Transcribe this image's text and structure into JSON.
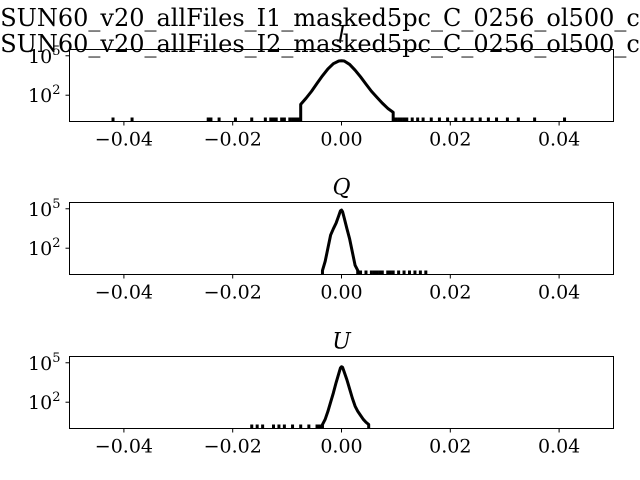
{
  "suptitle_lines": [
    "SUN60_v20_allFiles_I1_masked5pc_C_0256_ol500_c",
    "SUN60_v20_allFiles_I2_masked5pc_C_0256_ol500_c"
  ],
  "chart_data": [
    {
      "type": "line",
      "title": "I",
      "xlim": [
        -0.05,
        0.05
      ],
      "yscale": "log",
      "ylim": [
        1,
        300000
      ],
      "xticks": [
        -0.04,
        -0.02,
        0.0,
        0.02,
        0.04
      ],
      "xtick_labels": [
        "−0.04",
        "−0.02",
        "0.00",
        "0.02",
        "0.04"
      ],
      "yticks": [
        {
          "value": 100,
          "base": "10",
          "exp": "2"
        },
        {
          "value": 100000,
          "base": "10",
          "exp": "5"
        }
      ],
      "grid": false,
      "curve": {
        "x": [
          -0.0075,
          -0.0065,
          -0.0055,
          -0.0045,
          -0.0035,
          -0.0025,
          -0.0015,
          -0.0005,
          0.0,
          0.0005,
          0.0015,
          0.0025,
          0.0035,
          0.0045,
          0.0055,
          0.0065,
          0.0075,
          0.0085,
          0.0095
        ],
        "y": [
          20,
          60,
          200,
          800,
          3000,
          10000,
          25000,
          40000,
          42000,
          40000,
          22000,
          8000,
          2500,
          700,
          200,
          70,
          25,
          10,
          5
        ]
      },
      "outliers_x": [
        -0.042,
        -0.0385,
        -0.0245,
        -0.024,
        -0.0225,
        -0.0195,
        -0.0165,
        -0.014,
        -0.013,
        -0.0125,
        -0.012,
        -0.011,
        -0.0105,
        -0.0095,
        -0.009,
        -0.0085,
        -0.008,
        0.01,
        0.0105,
        0.011,
        0.0115,
        0.012,
        0.013,
        0.014,
        0.015,
        0.0165,
        0.018,
        0.0195,
        0.021,
        0.0225,
        0.024,
        0.0255,
        0.027,
        0.0285,
        0.0305,
        0.0325,
        0.0355,
        0.041
      ]
    },
    {
      "type": "line",
      "title": "Q",
      "xlim": [
        -0.05,
        0.05
      ],
      "yscale": "log",
      "ylim": [
        1,
        300000
      ],
      "xticks": [
        -0.04,
        -0.02,
        0.0,
        0.02,
        0.04
      ],
      "xtick_labels": [
        "−0.04",
        "−0.02",
        "0.00",
        "0.02",
        "0.04"
      ],
      "yticks": [
        {
          "value": 100,
          "base": "10",
          "exp": "2"
        },
        {
          "value": 100000,
          "base": "10",
          "exp": "5"
        }
      ],
      "grid": false,
      "curve": {
        "x": [
          -0.0035,
          -0.003,
          -0.0025,
          -0.002,
          -0.0015,
          -0.001,
          -0.0005,
          -0.0002,
          0.0,
          0.0002,
          0.0005,
          0.001,
          0.0015,
          0.002,
          0.0025,
          0.003
        ],
        "y": [
          2,
          10,
          100,
          1000,
          3000,
          8000,
          30000,
          70000,
          80000,
          60000,
          20000,
          3000,
          500,
          50,
          5,
          2
        ]
      },
      "outliers_x": [
        0.003,
        0.0035,
        0.0045,
        0.0055,
        0.006,
        0.0065,
        0.007,
        0.0075,
        0.0085,
        0.009,
        0.0095,
        0.0105,
        0.0115,
        0.0125,
        0.0135,
        0.0145,
        0.0155
      ]
    },
    {
      "type": "line",
      "title": "U",
      "xlim": [
        -0.05,
        0.05
      ],
      "yscale": "log",
      "ylim": [
        1,
        300000
      ],
      "xticks": [
        -0.04,
        -0.02,
        0.0,
        0.02,
        0.04
      ],
      "xtick_labels": [
        "−0.04",
        "−0.02",
        "0.00",
        "0.02",
        "0.04"
      ],
      "yticks": [
        {
          "value": 100,
          "base": "10",
          "exp": "2"
        },
        {
          "value": 100000,
          "base": "10",
          "exp": "5"
        }
      ],
      "grid": false,
      "curve": {
        "x": [
          -0.0035,
          -0.003,
          -0.0025,
          -0.002,
          -0.0015,
          -0.001,
          -0.0005,
          -0.0002,
          0.0,
          0.0002,
          0.0005,
          0.001,
          0.0015,
          0.002,
          0.0025,
          0.003,
          0.0035,
          0.004,
          0.0045,
          0.005
        ],
        "y": [
          2,
          5,
          20,
          100,
          500,
          3000,
          15000,
          40000,
          50000,
          45000,
          20000,
          5000,
          1000,
          200,
          50,
          20,
          10,
          5,
          3,
          2
        ]
      },
      "outliers_x": [
        -0.0165,
        -0.0155,
        -0.0145,
        -0.0125,
        -0.0115,
        -0.0105,
        -0.009,
        -0.0075,
        -0.006,
        -0.0045,
        -0.004
      ]
    }
  ]
}
